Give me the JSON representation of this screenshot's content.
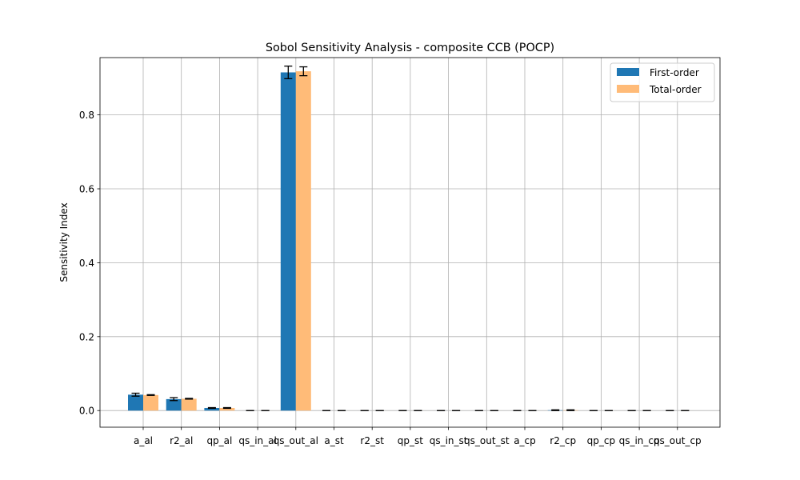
{
  "chart_data": {
    "type": "bar",
    "title": "Sobol Sensitivity Analysis - composite CCB (POCP)",
    "xlabel": "",
    "ylabel": "Sensitivity Index",
    "ylim": [
      -0.045,
      0.955
    ],
    "yticks": [
      "0.0",
      "0.2",
      "0.4",
      "0.6",
      "0.8"
    ],
    "grid": true,
    "legend_position": "top-right",
    "categories": [
      "a_al",
      "r2_al",
      "qp_al",
      "qs_in_al",
      "qs_out_al",
      "a_st",
      "r2_st",
      "qp_st",
      "qs_in_st",
      "qs_out_st",
      "a_cp",
      "r2_cp",
      "qp_cp",
      "qs_in_cp",
      "qs_out_cp"
    ],
    "series": [
      {
        "name": "First-order",
        "color": "#1f77b4",
        "values": [
          0.043,
          0.031,
          0.007,
          0.0,
          0.915,
          0.0,
          0.0,
          0.0,
          0.0,
          0.0,
          0.0,
          0.001,
          0.0,
          0.0,
          0.0
        ],
        "errors": [
          0.004,
          0.004,
          0.001,
          0.0,
          0.017,
          0.0,
          0.0,
          0.0,
          0.0,
          0.0,
          0.0,
          0.001,
          0.0,
          0.0,
          0.0
        ]
      },
      {
        "name": "Total-order",
        "color": "#ffbb78",
        "values": [
          0.042,
          0.032,
          0.007,
          0.0,
          0.918,
          0.0,
          0.0,
          0.0,
          0.0,
          0.0,
          0.0,
          0.001,
          0.0,
          0.0,
          0.0
        ],
        "errors": [
          0.001,
          0.001,
          0.001,
          0.0,
          0.012,
          0.0,
          0.0,
          0.0,
          0.0,
          0.0,
          0.0,
          0.001,
          0.0,
          0.0,
          0.0
        ]
      }
    ]
  }
}
